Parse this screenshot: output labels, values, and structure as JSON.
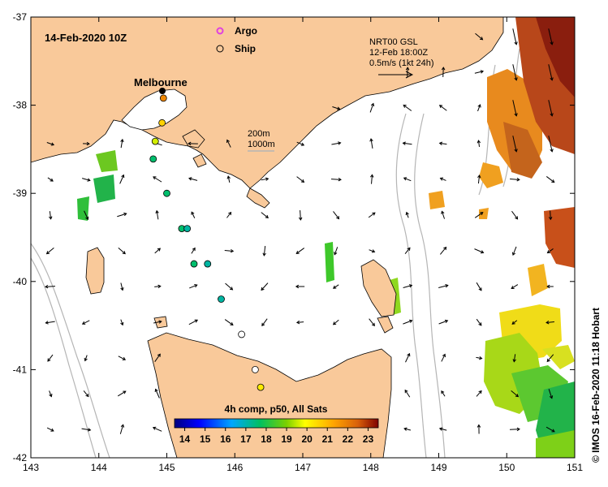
{
  "map": {
    "date_label": "14-Feb-2020 10Z",
    "place_label": "Melbourne",
    "legend": {
      "argo_label": "Argo",
      "ship_label": "Ship"
    },
    "current_key": {
      "line1": "NRT00 GSL",
      "line2": "12-Feb 18:00Z",
      "line3": "0.5m/s (1kt 24h)"
    },
    "depth_key": {
      "line1": "200m",
      "line2": "1000m"
    },
    "credit": "© IMOS 16-Feb-2020 11:18 Hobart",
    "x_ticks": [
      "143",
      "144",
      "145",
      "146",
      "147",
      "148",
      "149",
      "150",
      "151"
    ],
    "y_ticks": [
      "-37",
      "-38",
      "-39",
      "-40",
      "-41",
      "-42"
    ],
    "colorbar": {
      "title": "4h comp, p50, All Sats",
      "ticks": [
        "14",
        "15",
        "16",
        "17",
        "18",
        "19",
        "20",
        "21",
        "22",
        "23"
      ],
      "range": [
        13.5,
        23.5
      ]
    },
    "colors": {
      "land": "#f9c99a",
      "ocean": "#ffffff",
      "argo": "#e040e0"
    },
    "ships": [
      {
        "lon": 144.95,
        "lat": -37.92,
        "sst": 21.8
      },
      {
        "lon": 144.93,
        "lat": -38.2,
        "sst": 20.6
      },
      {
        "lon": 144.83,
        "lat": -38.41,
        "sst": 19.6
      },
      {
        "lon": 144.8,
        "lat": -38.61,
        "sst": 17.6
      },
      {
        "lon": 145.0,
        "lat": -39.0,
        "sst": 17.6
      },
      {
        "lon": 145.22,
        "lat": -39.4,
        "sst": 17.6
      },
      {
        "lon": 145.3,
        "lat": -39.4,
        "sst": 17.2
      },
      {
        "lon": 145.4,
        "lat": -39.8,
        "sst": 17.6
      },
      {
        "lon": 145.6,
        "lat": -39.8,
        "sst": 17.2
      },
      {
        "lon": 145.8,
        "lat": -40.2,
        "sst": 17.2
      },
      {
        "lon": 146.1,
        "lat": -40.6,
        "sst": null
      },
      {
        "lon": 146.3,
        "lat": -41.0,
        "sst": null
      },
      {
        "lon": 146.38,
        "lat": -41.2,
        "sst": 20.2
      }
    ]
  }
}
